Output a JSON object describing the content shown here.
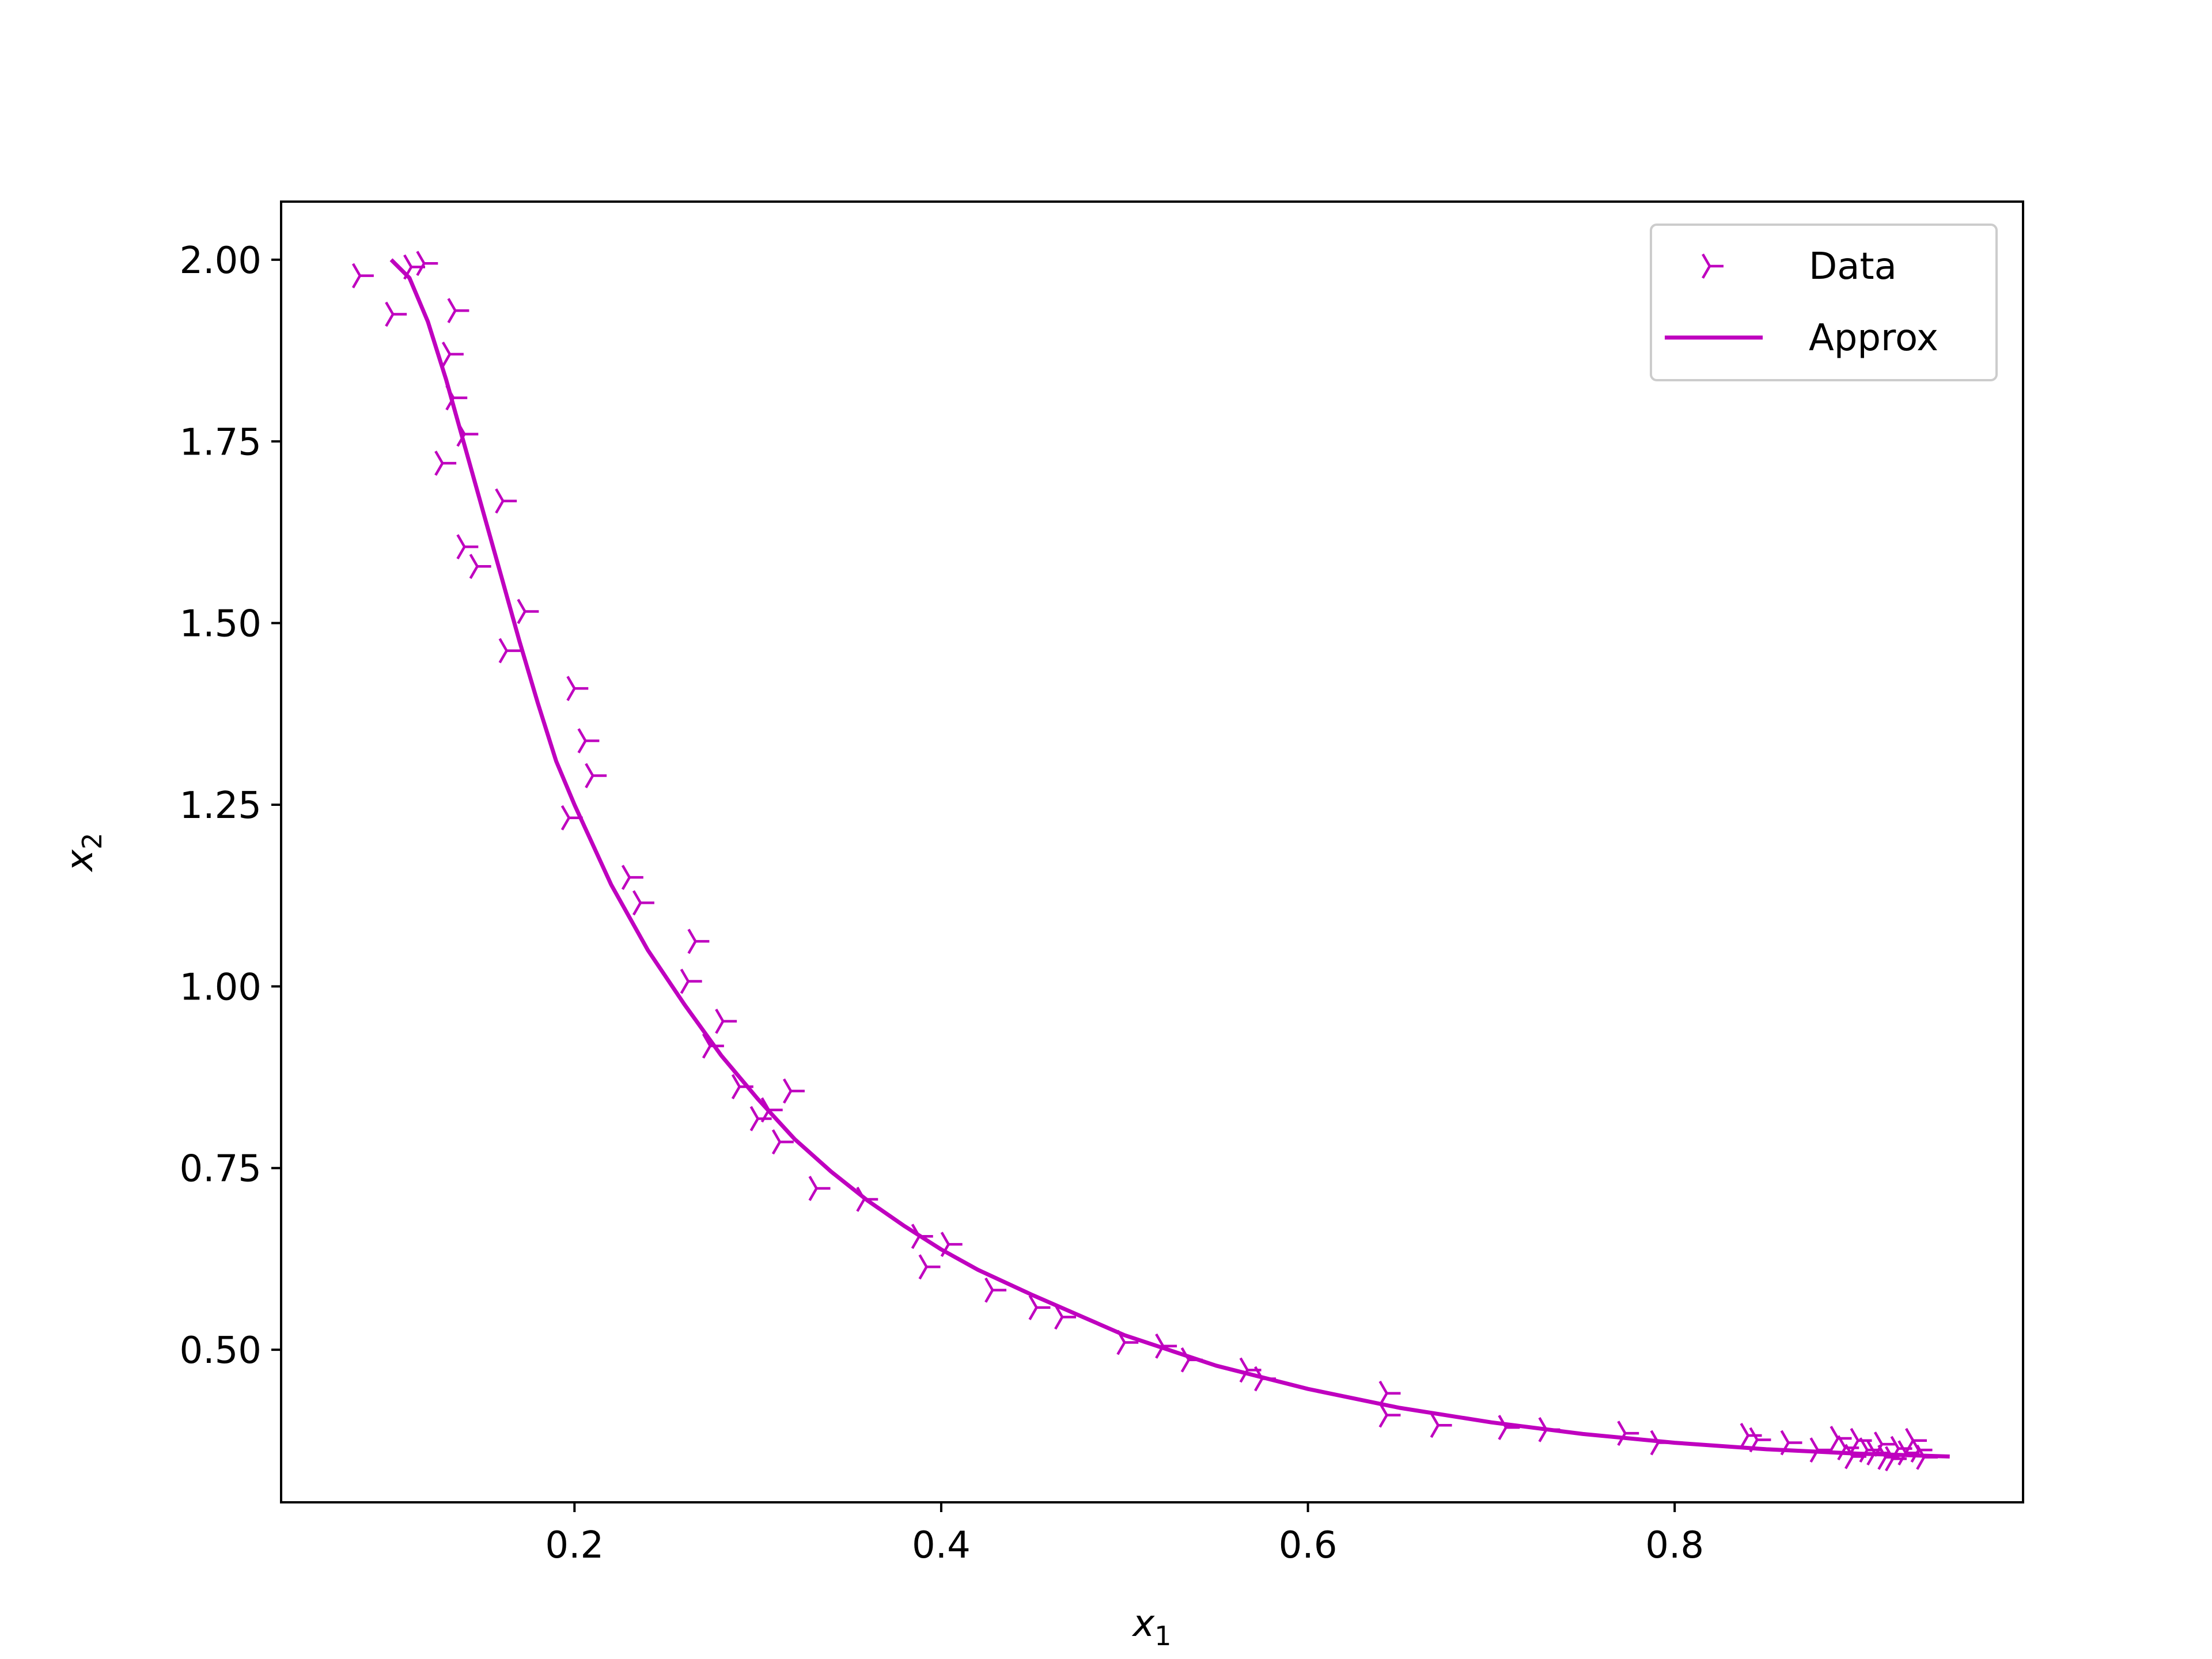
{
  "chart_data": {
    "type": "scatter",
    "xlabel": "x",
    "xlabel_sub": "1",
    "ylabel": "x",
    "ylabel_sub": "2",
    "xlim": [
      0.04,
      0.99
    ],
    "ylim": [
      0.29,
      2.08
    ],
    "xticks": [
      0.2,
      0.4,
      0.6,
      0.8
    ],
    "xtick_labels": [
      "0.2",
      "0.4",
      "0.6",
      "0.8"
    ],
    "yticks": [
      0.5,
      0.75,
      1.0,
      1.25,
      1.5,
      1.75,
      2.0
    ],
    "ytick_labels": [
      "0.50",
      "0.75",
      "1.00",
      "1.25",
      "1.50",
      "1.75",
      "2.00"
    ],
    "grid": false,
    "legend_position": "top-right",
    "color": "#bf00bf",
    "series": [
      {
        "name": "Data",
        "kind": "marker",
        "marker": "tri_right",
        "points": [
          [
            0.083,
            1.978
          ],
          [
            0.101,
            1.925
          ],
          [
            0.111,
            1.99
          ],
          [
            0.118,
            1.995
          ],
          [
            0.132,
            1.87
          ],
          [
            0.134,
            1.81
          ],
          [
            0.135,
            1.93
          ],
          [
            0.128,
            1.72
          ],
          [
            0.14,
            1.76
          ],
          [
            0.14,
            1.605
          ],
          [
            0.147,
            1.578
          ],
          [
            0.161,
            1.668
          ],
          [
            0.163,
            1.462
          ],
          [
            0.173,
            1.516
          ],
          [
            0.197,
            1.232
          ],
          [
            0.2,
            1.41
          ],
          [
            0.206,
            1.338
          ],
          [
            0.21,
            1.29
          ],
          [
            0.23,
            1.15
          ],
          [
            0.236,
            1.115
          ],
          [
            0.262,
            1.007
          ],
          [
            0.266,
            1.062
          ],
          [
            0.274,
            0.918
          ],
          [
            0.281,
            0.952
          ],
          [
            0.29,
            0.862
          ],
          [
            0.3,
            0.818
          ],
          [
            0.306,
            0.83
          ],
          [
            0.312,
            0.786
          ],
          [
            0.318,
            0.856
          ],
          [
            0.332,
            0.722
          ],
          [
            0.358,
            0.707
          ],
          [
            0.388,
            0.656
          ],
          [
            0.392,
            0.614
          ],
          [
            0.404,
            0.645
          ],
          [
            0.428,
            0.582
          ],
          [
            0.452,
            0.558
          ],
          [
            0.466,
            0.545
          ],
          [
            0.5,
            0.51
          ],
          [
            0.521,
            0.505
          ],
          [
            0.535,
            0.486
          ],
          [
            0.567,
            0.472
          ],
          [
            0.575,
            0.46
          ],
          [
            0.643,
            0.44
          ],
          [
            0.643,
            0.41
          ],
          [
            0.671,
            0.396
          ],
          [
            0.708,
            0.393
          ],
          [
            0.73,
            0.39
          ],
          [
            0.773,
            0.385
          ],
          [
            0.791,
            0.372
          ],
          [
            0.84,
            0.382
          ],
          [
            0.845,
            0.376
          ],
          [
            0.862,
            0.372
          ],
          [
            0.878,
            0.362
          ],
          [
            0.889,
            0.378
          ],
          [
            0.893,
            0.365
          ],
          [
            0.897,
            0.353
          ],
          [
            0.9,
            0.375
          ],
          [
            0.905,
            0.362
          ],
          [
            0.909,
            0.358
          ],
          [
            0.913,
            0.37
          ],
          [
            0.915,
            0.352
          ],
          [
            0.919,
            0.35
          ],
          [
            0.922,
            0.364
          ],
          [
            0.926,
            0.358
          ],
          [
            0.93,
            0.375
          ],
          [
            0.933,
            0.362
          ],
          [
            0.936,
            0.352
          ]
        ]
      },
      {
        "name": "Approx",
        "kind": "line",
        "points": [
          [
            0.1,
            2.0
          ],
          [
            0.11,
            1.975
          ],
          [
            0.12,
            1.915
          ],
          [
            0.13,
            1.835
          ],
          [
            0.14,
            1.745
          ],
          [
            0.15,
            1.655
          ],
          [
            0.16,
            1.565
          ],
          [
            0.17,
            1.475
          ],
          [
            0.18,
            1.39
          ],
          [
            0.19,
            1.31
          ],
          [
            0.2,
            1.25
          ],
          [
            0.22,
            1.14
          ],
          [
            0.24,
            1.05
          ],
          [
            0.26,
            0.975
          ],
          [
            0.28,
            0.905
          ],
          [
            0.3,
            0.845
          ],
          [
            0.32,
            0.79
          ],
          [
            0.34,
            0.745
          ],
          [
            0.36,
            0.705
          ],
          [
            0.38,
            0.67
          ],
          [
            0.4,
            0.638
          ],
          [
            0.42,
            0.61
          ],
          [
            0.45,
            0.575
          ],
          [
            0.5,
            0.52
          ],
          [
            0.55,
            0.478
          ],
          [
            0.6,
            0.446
          ],
          [
            0.65,
            0.42
          ],
          [
            0.7,
            0.4
          ],
          [
            0.75,
            0.384
          ],
          [
            0.8,
            0.372
          ],
          [
            0.85,
            0.363
          ],
          [
            0.9,
            0.357
          ],
          [
            0.95,
            0.353
          ]
        ]
      }
    ]
  }
}
